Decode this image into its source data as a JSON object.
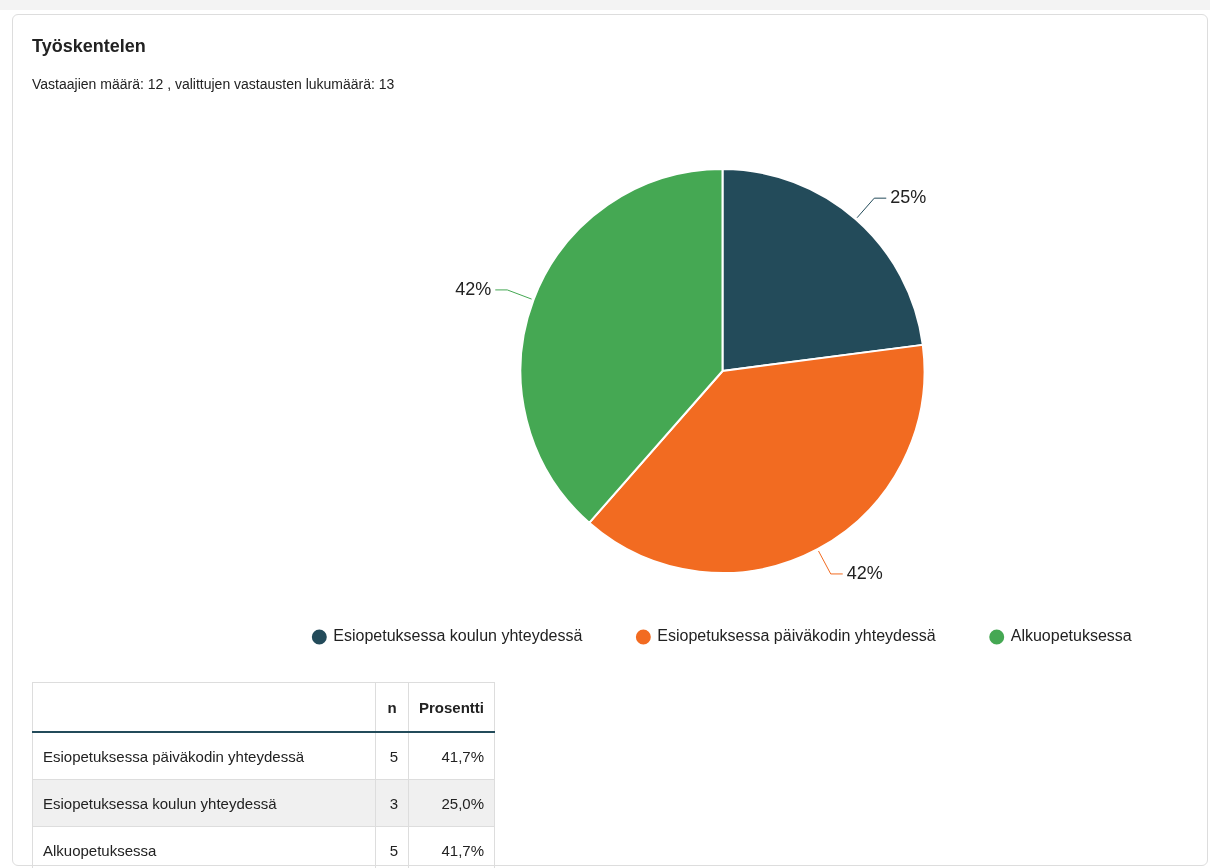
{
  "chart_data": {
    "type": "pie",
    "title": "Työskentelen",
    "subtitle": "Vastaajien määrä: 12 , valittujen vastausten lukumäärä: 13",
    "categories": [
      "Esiopetuksessa koulun yhteydessä",
      "Esiopetuksessa päiväkodin yhteydessä",
      "Alkuopetuksessa"
    ],
    "values": [
      25,
      42,
      42
    ],
    "colors": [
      "#234b5a",
      "#f26b21",
      "#45a853"
    ],
    "value_labels": [
      "25%",
      "42%",
      "42%"
    ],
    "legend": "bottom",
    "annotations": [
      "n",
      "Prosentti",
      "Esiopetuksessa päiväkodin yhteydessä",
      "5",
      "41,7%",
      "Esiopetuksessa koulun yhteydessä",
      "3",
      "25,0%",
      "Alkuopetuksessa",
      "5",
      "41,7%"
    ]
  }
}
